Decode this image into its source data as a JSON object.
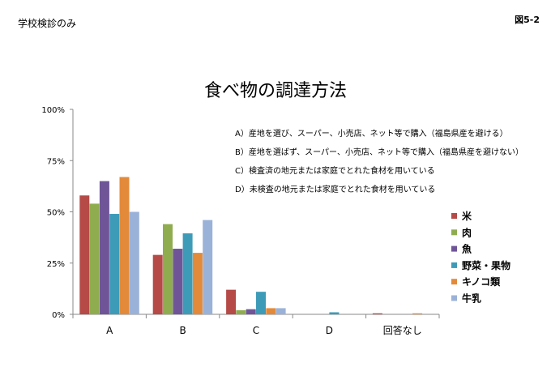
{
  "header": {
    "left_label": "学校検診のみ",
    "figure_id": "図5-2"
  },
  "chart_data": {
    "type": "bar",
    "title": "食べ物の調達方法",
    "xlabel": "",
    "ylabel": "",
    "ylim": [
      0,
      100
    ],
    "yticks": [
      "0%",
      "25%",
      "50%",
      "75%",
      "100%"
    ],
    "ytick_values": [
      0,
      25,
      50,
      75,
      100
    ],
    "categories": [
      "A",
      "B",
      "C",
      "D",
      "回答なし"
    ],
    "series": [
      {
        "name": "米",
        "color": "#b54a47",
        "values": [
          58,
          29,
          12,
          0,
          0.5
        ]
      },
      {
        "name": "肉",
        "color": "#8fad4f",
        "values": [
          54,
          44,
          2,
          0,
          0
        ]
      },
      {
        "name": "魚",
        "color": "#6f5598",
        "values": [
          65,
          32,
          2.5,
          0,
          0
        ]
      },
      {
        "name": "野菜・果物",
        "color": "#3e9bb8",
        "values": [
          49,
          39.5,
          11,
          1,
          0
        ]
      },
      {
        "name": "キノコ類",
        "color": "#e38a3a",
        "values": [
          67,
          30,
          3,
          0,
          0.5
        ]
      },
      {
        "name": "牛乳",
        "color": "#9bb2d8",
        "values": [
          50,
          46,
          3,
          0,
          0
        ]
      }
    ],
    "legend_position": "right",
    "grid": false,
    "annotations": [
      "A）産地を選び、スーパー、小売店、ネット等で購入（福島県産を避ける）",
      "B）産地を選ばず、スーパー、小売店、ネット等で購入（福島県産を避けない）",
      "C）検査済の地元または家庭でとれた食材を用いている",
      "D）未検査の地元または家庭でとれた食材を用いている"
    ]
  }
}
